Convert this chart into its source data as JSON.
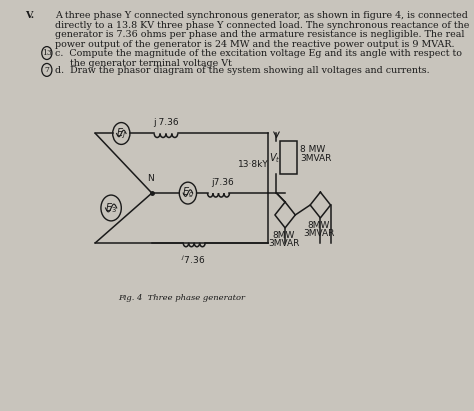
{
  "bg_color": "#c8c4bc",
  "text_color": "#1a1a1a",
  "fig_bg": "#e8e4dc",
  "title_roman": "V.",
  "problem_text_lines": [
    "A three phase Y connected synchronous generator, as shown in figure 4, is connected",
    "directly to a 13.8 KV three phase Y connected load. The synchronous reactance of the",
    "generator is 7.36 ohms per phase and the armature resistance is negligible. The real",
    "power output of the generator is 24 MW and the reactive power output is 9 MVAR."
  ],
  "part_c_num": "13",
  "part_c_line1": "c.  Compute the magnitude of the excitation voltage Eg and its angle with respect to",
  "part_c_line2": "     the generator terminal voltage Vt",
  "part_d_num": "7",
  "part_d_line": "d.  Draw the phasor diagram of the system showing all voltages and currents.",
  "fig_caption": "Fig. 4  Three phase generator",
  "dark": "#1a1a1a",
  "circuit_bg": "#dedad2"
}
